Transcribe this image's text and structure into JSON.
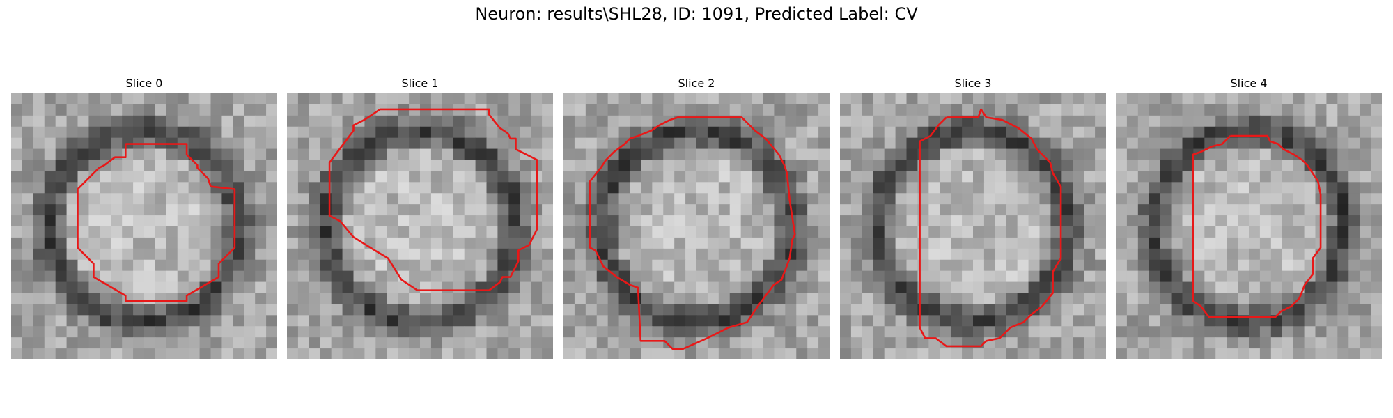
{
  "figure": {
    "title": "Neuron: results\\SHL28, ID: 1091, Predicted Label: CV",
    "colors": {
      "contour": "#e81818",
      "colormap": "gray"
    }
  },
  "slices": [
    {
      "label": "Slice 0",
      "contour_points": [
        [
          0.43,
          0.19
        ],
        [
          0.66,
          0.19
        ],
        [
          0.66,
          0.23
        ],
        [
          0.7,
          0.27
        ],
        [
          0.7,
          0.28
        ],
        [
          0.74,
          0.32
        ],
        [
          0.75,
          0.35
        ],
        [
          0.84,
          0.36
        ],
        [
          0.84,
          0.58
        ],
        [
          0.78,
          0.64
        ],
        [
          0.78,
          0.69
        ],
        [
          0.66,
          0.76
        ],
        [
          0.66,
          0.78
        ],
        [
          0.64,
          0.78
        ],
        [
          0.43,
          0.78
        ],
        [
          0.43,
          0.76
        ],
        [
          0.31,
          0.69
        ],
        [
          0.31,
          0.64
        ],
        [
          0.25,
          0.58
        ],
        [
          0.25,
          0.36
        ],
        [
          0.31,
          0.3
        ],
        [
          0.33,
          0.28
        ],
        [
          0.35,
          0.27
        ],
        [
          0.39,
          0.24
        ],
        [
          0.43,
          0.24
        ],
        [
          0.43,
          0.19
        ]
      ],
      "gray_grid": []
    },
    {
      "label": "Slice 1",
      "contour_points": [
        [
          0.35,
          0.06
        ],
        [
          0.76,
          0.06
        ],
        [
          0.76,
          0.08
        ],
        [
          0.8,
          0.13
        ],
        [
          0.83,
          0.15
        ],
        [
          0.84,
          0.17
        ],
        [
          0.86,
          0.17
        ],
        [
          0.86,
          0.21
        ],
        [
          0.94,
          0.25
        ],
        [
          0.94,
          0.51
        ],
        [
          0.91,
          0.57
        ],
        [
          0.87,
          0.59
        ],
        [
          0.87,
          0.63
        ],
        [
          0.84,
          0.69
        ],
        [
          0.81,
          0.69
        ],
        [
          0.8,
          0.71
        ],
        [
          0.76,
          0.74
        ],
        [
          0.74,
          0.74
        ],
        [
          0.5,
          0.74
        ],
        [
          0.49,
          0.74
        ],
        [
          0.43,
          0.7
        ],
        [
          0.38,
          0.62
        ],
        [
          0.33,
          0.59
        ],
        [
          0.25,
          0.54
        ],
        [
          0.2,
          0.48
        ],
        [
          0.16,
          0.46
        ],
        [
          0.16,
          0.26
        ],
        [
          0.22,
          0.18
        ],
        [
          0.25,
          0.14
        ],
        [
          0.25,
          0.12
        ],
        [
          0.29,
          0.1
        ],
        [
          0.35,
          0.06
        ]
      ],
      "gray_grid": []
    },
    {
      "label": "Slice 2",
      "contour_points": [
        [
          0.43,
          0.09
        ],
        [
          0.67,
          0.09
        ],
        [
          0.72,
          0.14
        ],
        [
          0.76,
          0.17
        ],
        [
          0.81,
          0.23
        ],
        [
          0.83,
          0.27
        ],
        [
          0.84,
          0.3
        ],
        [
          0.85,
          0.4
        ],
        [
          0.87,
          0.53
        ],
        [
          0.86,
          0.55
        ],
        [
          0.85,
          0.62
        ],
        [
          0.82,
          0.7
        ],
        [
          0.79,
          0.72
        ],
        [
          0.76,
          0.76
        ],
        [
          0.73,
          0.8
        ],
        [
          0.69,
          0.86
        ],
        [
          0.62,
          0.88
        ],
        [
          0.58,
          0.9
        ],
        [
          0.54,
          0.92
        ],
        [
          0.45,
          0.96
        ],
        [
          0.41,
          0.96
        ],
        [
          0.38,
          0.93
        ],
        [
          0.29,
          0.93
        ],
        [
          0.28,
          0.73
        ],
        [
          0.25,
          0.72
        ],
        [
          0.2,
          0.69
        ],
        [
          0.15,
          0.65
        ],
        [
          0.12,
          0.59
        ],
        [
          0.1,
          0.58
        ],
        [
          0.1,
          0.39
        ],
        [
          0.1,
          0.33
        ],
        [
          0.14,
          0.28
        ],
        [
          0.16,
          0.25
        ],
        [
          0.19,
          0.22
        ],
        [
          0.23,
          0.19
        ],
        [
          0.25,
          0.17
        ],
        [
          0.28,
          0.16
        ],
        [
          0.33,
          0.14
        ],
        [
          0.36,
          0.12
        ],
        [
          0.4,
          0.1
        ],
        [
          0.43,
          0.09
        ]
      ],
      "gray_grid": []
    },
    {
      "label": "Slice 3",
      "contour_points": [
        [
          0.4,
          0.09
        ],
        [
          0.52,
          0.09
        ],
        [
          0.53,
          0.06
        ],
        [
          0.55,
          0.09
        ],
        [
          0.61,
          0.1
        ],
        [
          0.65,
          0.12
        ],
        [
          0.67,
          0.13
        ],
        [
          0.72,
          0.17
        ],
        [
          0.74,
          0.21
        ],
        [
          0.79,
          0.26
        ],
        [
          0.8,
          0.3
        ],
        [
          0.83,
          0.35
        ],
        [
          0.83,
          0.62
        ],
        [
          0.8,
          0.67
        ],
        [
          0.8,
          0.75
        ],
        [
          0.76,
          0.8
        ],
        [
          0.72,
          0.83
        ],
        [
          0.69,
          0.86
        ],
        [
          0.64,
          0.88
        ],
        [
          0.6,
          0.92
        ],
        [
          0.55,
          0.93
        ],
        [
          0.53,
          0.95
        ],
        [
          0.4,
          0.95
        ],
        [
          0.36,
          0.92
        ],
        [
          0.32,
          0.92
        ],
        [
          0.3,
          0.88
        ],
        [
          0.3,
          0.18
        ],
        [
          0.34,
          0.16
        ],
        [
          0.37,
          0.12
        ],
        [
          0.4,
          0.09
        ]
      ],
      "gray_grid": []
    },
    {
      "label": "Slice 4",
      "contour_points": [
        [
          0.43,
          0.16
        ],
        [
          0.57,
          0.16
        ],
        [
          0.58,
          0.18
        ],
        [
          0.61,
          0.19
        ],
        [
          0.63,
          0.21
        ],
        [
          0.67,
          0.23
        ],
        [
          0.7,
          0.25
        ],
        [
          0.72,
          0.27
        ],
        [
          0.76,
          0.33
        ],
        [
          0.77,
          0.38
        ],
        [
          0.77,
          0.58
        ],
        [
          0.74,
          0.62
        ],
        [
          0.74,
          0.68
        ],
        [
          0.71,
          0.72
        ],
        [
          0.69,
          0.77
        ],
        [
          0.66,
          0.8
        ],
        [
          0.62,
          0.82
        ],
        [
          0.6,
          0.84
        ],
        [
          0.53,
          0.84
        ],
        [
          0.35,
          0.84
        ],
        [
          0.32,
          0.8
        ],
        [
          0.29,
          0.78
        ],
        [
          0.29,
          0.23
        ],
        [
          0.32,
          0.22
        ],
        [
          0.36,
          0.2
        ],
        [
          0.4,
          0.19
        ],
        [
          0.43,
          0.16
        ]
      ],
      "gray_grid": []
    }
  ]
}
